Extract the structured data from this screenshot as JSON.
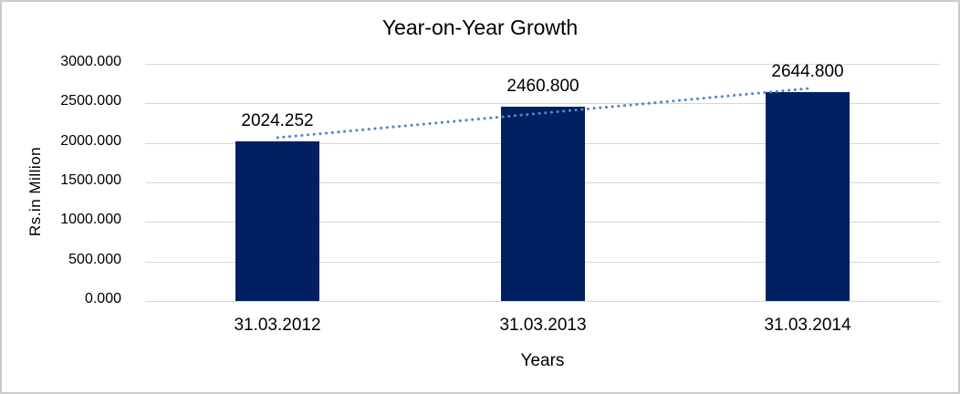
{
  "chart_data": {
    "type": "bar",
    "title": "Year-on-Year Growth",
    "xlabel": "Years",
    "ylabel": "Rs.in Million",
    "categories": [
      "31.03.2012",
      "31.03.2013",
      "31.03.2014"
    ],
    "values": [
      2024.252,
      2460.8,
      2644.8
    ],
    "data_labels": [
      "2024.252",
      "2460.800",
      "2644.800"
    ],
    "y_ticks": [
      "3000.000",
      "2500.000",
      "2000.000",
      "1500.000",
      "1000.000",
      "500.000",
      "0.000"
    ],
    "ylim": [
      0,
      3000
    ],
    "grid": true,
    "legend": "none",
    "trendline": {
      "type": "linear",
      "style": "dotted"
    },
    "colors": {
      "bar": "#002060",
      "trendline": "#4f86c6",
      "gridline": "#d6d6d6",
      "text": "#000000",
      "frame_border": "#cbcbcb",
      "background": "#ffffff"
    }
  }
}
